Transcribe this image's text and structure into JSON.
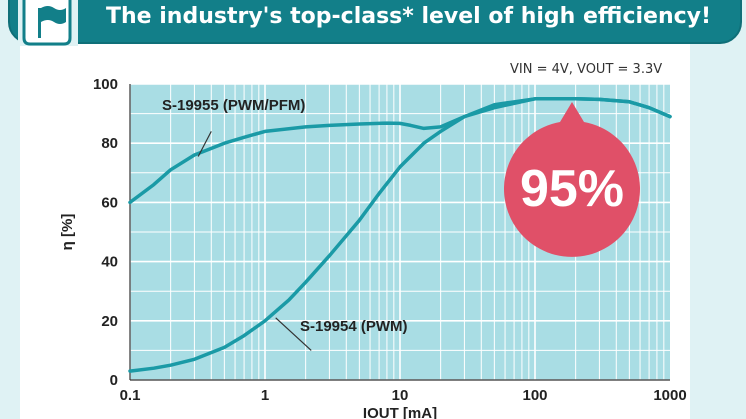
{
  "header": {
    "title": "The industry's top-class* level of high efficiency!",
    "icon": "flag-icon"
  },
  "conditions": "VIN = 4V, VOUT = 3.3V",
  "badge": {
    "text": "95%",
    "color": "#e05068"
  },
  "chart_data": {
    "type": "line",
    "xlabel": "IOUT [mA]",
    "ylabel": "η [%]",
    "x_scale": "log",
    "xlim": [
      0.1,
      1000
    ],
    "ylim": [
      0,
      100
    ],
    "x_ticks": [
      "0.1",
      "1",
      "10",
      "100",
      "1000"
    ],
    "y_ticks": [
      "0",
      "20",
      "40",
      "60",
      "80",
      "100"
    ],
    "grid": true,
    "colors": {
      "plot_bg": "#a9dde4",
      "grid": "#ffffff",
      "line": "#1a9aa6"
    },
    "series": [
      {
        "name": "S-19955 (PWM/PFM)",
        "x": [
          0.1,
          0.15,
          0.2,
          0.3,
          0.5,
          0.7,
          1,
          2,
          3,
          5,
          8,
          10,
          12,
          15,
          20,
          30,
          50,
          100,
          200,
          300,
          500,
          700,
          1000
        ],
        "y": [
          60,
          66,
          71,
          76,
          80,
          82,
          84,
          85.5,
          86,
          86.5,
          86.8,
          86.7,
          86,
          85,
          85.5,
          89,
          92,
          95,
          95,
          94.8,
          94,
          92,
          89
        ]
      },
      {
        "name": "S-19954 (PWM)",
        "x": [
          0.1,
          0.15,
          0.2,
          0.3,
          0.5,
          0.7,
          1,
          1.5,
          2,
          3,
          5,
          7,
          10,
          15,
          20,
          30,
          50,
          100,
          200,
          300,
          500,
          700,
          1000
        ],
        "y": [
          3,
          4,
          5,
          7,
          11,
          15,
          20,
          27,
          33,
          42,
          54,
          63,
          72,
          80,
          84,
          89,
          93,
          95,
          95,
          94.8,
          94,
          92,
          89
        ]
      }
    ],
    "annotations": [
      "S-19955 (PWM/PFM)",
      "S-19954 (PWM)"
    ]
  }
}
